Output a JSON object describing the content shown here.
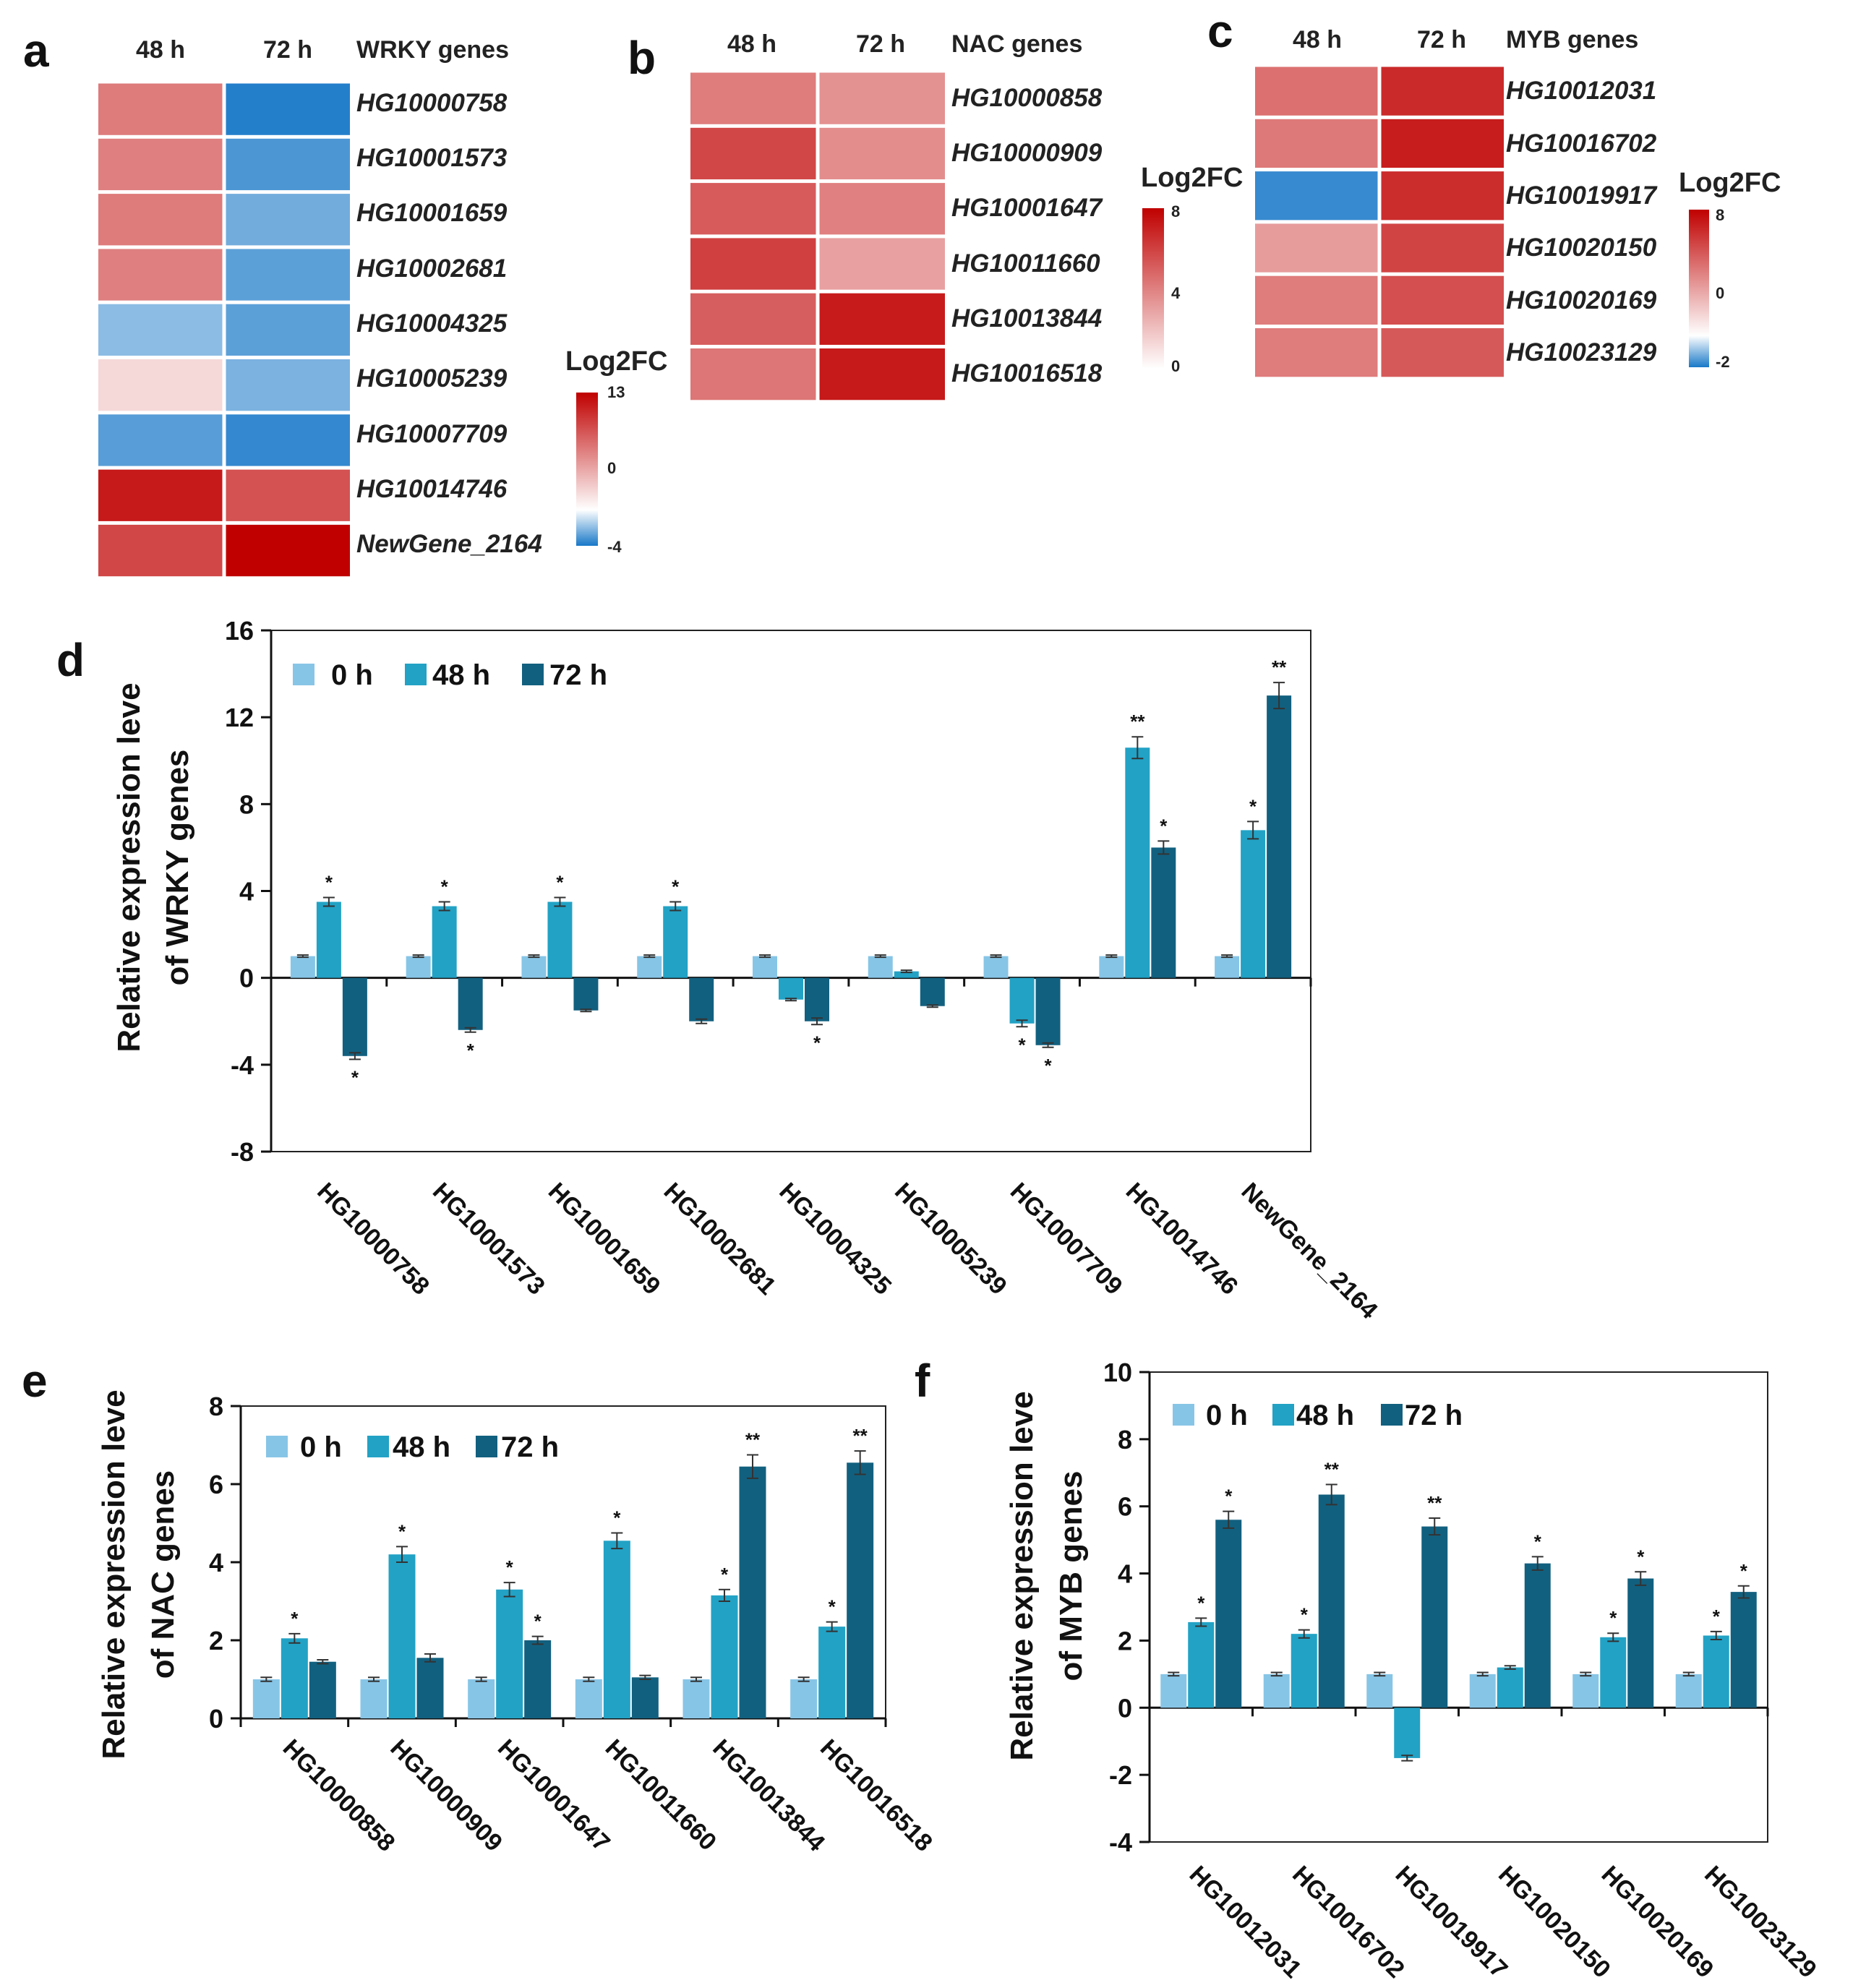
{
  "panel_labels": {
    "a": "a",
    "b": "b",
    "c": "c",
    "d": "d",
    "e": "e",
    "f": "f"
  },
  "colors": {
    "c0h": "#87c5e6",
    "c48h": "#22a2c5",
    "c72h": "#12607f",
    "hm_red": "#c00000",
    "hm_blue": "#1878c8",
    "hm_white": "#ffffff"
  },
  "chart_data": [
    {
      "id": "a",
      "type": "heatmap",
      "title": "WRKY genes",
      "columns": [
        "48 h",
        "72 h"
      ],
      "rows": [
        "HG10000758",
        "HG10001573",
        "HG10001659",
        "HG10002681",
        "HG10004325",
        "HG10005239",
        "HG10007709",
        "HG10014746",
        "NewGene_2164"
      ],
      "values": [
        [
          3.5,
          -3.6
        ],
        [
          3.3,
          -2.4
        ],
        [
          3.5,
          -1.5
        ],
        [
          3.3,
          -2.0
        ],
        [
          -1.0,
          -2.0
        ],
        [
          0.3,
          -1.3
        ],
        [
          -2.1,
          -3.1
        ],
        [
          10.6,
          6.0
        ],
        [
          6.8,
          13.0
        ]
      ],
      "legend_title": "Log2FC",
      "scale": {
        "min": -4,
        "mid": 0,
        "max": 13
      },
      "legend_ticks": [
        "13",
        "0",
        "-4"
      ]
    },
    {
      "id": "b",
      "type": "heatmap",
      "title": "NAC genes",
      "columns": [
        "48 h",
        "72 h"
      ],
      "rows": [
        "HG10000858",
        "HG10000909",
        "HG10001647",
        "HG10011660",
        "HG10013844",
        "HG10016518"
      ],
      "values": [
        [
          2.1,
          1.5
        ],
        [
          4.2,
          1.6
        ],
        [
          3.3,
          2.0
        ],
        [
          4.5,
          1.1
        ],
        [
          3.2,
          6.4
        ],
        [
          2.3,
          6.5
        ]
      ],
      "legend_title": "Log2FC",
      "scale": {
        "min": 0,
        "mid": 0,
        "max": 8
      },
      "legend_ticks": [
        "8",
        "4",
        "0"
      ]
    },
    {
      "id": "c",
      "type": "heatmap",
      "title": "MYB genes",
      "columns": [
        "48 h",
        "72 h"
      ],
      "rows": [
        "HG10012031",
        "HG10016702",
        "HG10019917",
        "HG10020150",
        "HG10020169",
        "HG10023129"
      ],
      "values": [
        [
          2.5,
          5.6
        ],
        [
          2.2,
          6.3
        ],
        [
          -1.5,
          5.4
        ],
        [
          1.2,
          4.3
        ],
        [
          2.1,
          3.8
        ],
        [
          2.1,
          3.4
        ]
      ],
      "legend_title": "Log2FC",
      "scale": {
        "min": -2,
        "mid": 0,
        "max": 8
      },
      "legend_ticks": [
        "8",
        "0",
        "-2"
      ]
    },
    {
      "id": "d",
      "type": "bar",
      "ylabel": "Relative expression leve of WRKY genes",
      "ylabel_lines": [
        "Relative expression leve",
        "of WRKY genes"
      ],
      "ylim": [
        -8,
        16
      ],
      "yticks": [
        -8,
        -4,
        0,
        4,
        8,
        12,
        16
      ],
      "categories": [
        "HG10000758",
        "HG10001573",
        "HG10001659",
        "HG10002681",
        "HG10004325",
        "HG10005239",
        "HG10007709",
        "HG10014746",
        "NewGene_2164"
      ],
      "legend": [
        "0 h",
        "48 h",
        "72 h"
      ],
      "series": [
        {
          "name": "0 h",
          "values": [
            1,
            1,
            1,
            1,
            1,
            1,
            1,
            1,
            1
          ],
          "errors": [
            0.05,
            0.05,
            0.05,
            0.05,
            0.05,
            0.05,
            0.05,
            0.05,
            0.05
          ],
          "sig": [
            "",
            "",
            "",
            "",
            "",
            "",
            "",
            "",
            ""
          ]
        },
        {
          "name": "48 h",
          "values": [
            3.5,
            3.3,
            3.5,
            3.3,
            -1.0,
            0.3,
            -2.1,
            10.6,
            6.8
          ],
          "errors": [
            0.2,
            0.2,
            0.2,
            0.2,
            0.05,
            0.05,
            0.15,
            0.5,
            0.4
          ],
          "sig": [
            "*",
            "*",
            "*",
            "*",
            "",
            "",
            "*",
            "**",
            "*"
          ]
        },
        {
          "name": "72 h",
          "values": [
            -3.6,
            -2.4,
            -1.5,
            -2.0,
            -2.0,
            -1.3,
            -3.1,
            6.0,
            13.0
          ],
          "errors": [
            0.15,
            0.1,
            0.05,
            0.1,
            0.15,
            0.05,
            0.1,
            0.3,
            0.6
          ],
          "sig": [
            "*",
            "*",
            "",
            "",
            "*",
            "",
            "*",
            "*",
            "**"
          ]
        }
      ]
    },
    {
      "id": "e",
      "type": "bar",
      "ylabel": "Relative expression leve of NAC genes",
      "ylabel_lines": [
        "Relative expression leve",
        "of NAC genes"
      ],
      "ylim": [
        0,
        8
      ],
      "yticks": [
        0,
        2,
        4,
        6,
        8
      ],
      "categories": [
        "HG10000858",
        "HG10000909",
        "HG10001647",
        "HG10011660",
        "HG10013844",
        "HG10016518"
      ],
      "legend": [
        "0 h",
        "48 h",
        "72 h"
      ],
      "series": [
        {
          "name": "0 h",
          "values": [
            1,
            1,
            1,
            1,
            1,
            1
          ],
          "errors": [
            0.05,
            0.05,
            0.05,
            0.05,
            0.05,
            0.05
          ],
          "sig": [
            "",
            "",
            "",
            "",
            "",
            ""
          ]
        },
        {
          "name": "48 h",
          "values": [
            2.05,
            4.2,
            3.3,
            4.55,
            3.15,
            2.35
          ],
          "errors": [
            0.12,
            0.2,
            0.18,
            0.2,
            0.15,
            0.12
          ],
          "sig": [
            "*",
            "*",
            "*",
            "*",
            "*",
            "*"
          ]
        },
        {
          "name": "72 h",
          "values": [
            1.45,
            1.55,
            2.0,
            1.05,
            6.45,
            6.55
          ],
          "errors": [
            0.05,
            0.1,
            0.1,
            0.05,
            0.3,
            0.3
          ],
          "sig": [
            "",
            "",
            "*",
            "",
            "**",
            "**"
          ]
        }
      ]
    },
    {
      "id": "f",
      "type": "bar",
      "ylabel": "Relative expression leve of MYB genes",
      "ylabel_lines": [
        "Relative expression leve",
        "of MYB genes"
      ],
      "ylim": [
        -4,
        10
      ],
      "yticks": [
        -4,
        -2,
        0,
        2,
        4,
        6,
        8,
        10
      ],
      "categories": [
        "HG10012031",
        "HG10016702",
        "HG10019917",
        "HG10020150",
        "HG10020169",
        "HG10023129"
      ],
      "legend": [
        "0 h",
        "48 h",
        "72 h"
      ],
      "series": [
        {
          "name": "0 h",
          "values": [
            1,
            1,
            1,
            1,
            1,
            1
          ],
          "errors": [
            0.05,
            0.05,
            0.05,
            0.05,
            0.05,
            0.05
          ],
          "sig": [
            "",
            "",
            "",
            "",
            "",
            ""
          ]
        },
        {
          "name": "48 h",
          "values": [
            2.55,
            2.2,
            -1.5,
            1.2,
            2.1,
            2.15
          ],
          "errors": [
            0.12,
            0.12,
            0.08,
            0.05,
            0.12,
            0.12
          ],
          "sig": [
            "*",
            "*",
            "",
            "",
            "*",
            "*"
          ]
        },
        {
          "name": "72 h",
          "values": [
            5.6,
            6.35,
            5.4,
            4.3,
            3.85,
            3.45
          ],
          "errors": [
            0.25,
            0.3,
            0.25,
            0.2,
            0.2,
            0.18
          ],
          "sig": [
            "*",
            "**",
            "**",
            "*",
            "*",
            "*"
          ]
        }
      ]
    }
  ]
}
